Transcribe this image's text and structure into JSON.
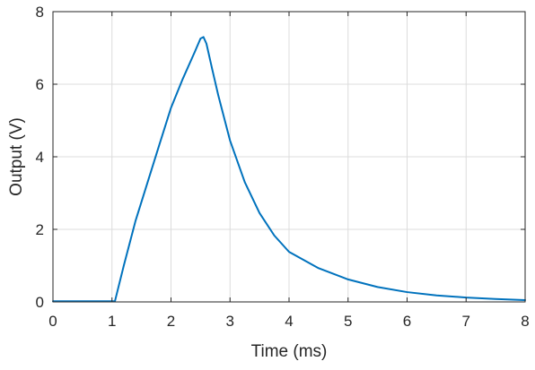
{
  "chart_data": {
    "type": "line",
    "title": "",
    "xlabel": "Time (ms)",
    "ylabel": "Output (V)",
    "xlim": [
      0,
      8
    ],
    "ylim": [
      0,
      8
    ],
    "xticks": [
      0,
      1,
      2,
      3,
      4,
      5,
      6,
      7,
      8
    ],
    "yticks": [
      0,
      2,
      4,
      6,
      8
    ],
    "xtick_labels": [
      "0",
      "1",
      "2",
      "3",
      "4",
      "5",
      "6",
      "7",
      "8"
    ],
    "ytick_labels": [
      "0",
      "2",
      "4",
      "6",
      "8"
    ],
    "grid": true,
    "colors": {
      "series": "#0072bd",
      "grid": "#dcdcdc",
      "axes": "#262626"
    },
    "series": [
      {
        "x": [
          0,
          0.5,
          1.0,
          1.05,
          1.2,
          1.4,
          1.6,
          1.8,
          2.0,
          2.2,
          2.4,
          2.5,
          2.55,
          2.6,
          2.7,
          2.8,
          3.0,
          3.25,
          3.5,
          3.75,
          4.0,
          4.5,
          5.0,
          5.5,
          6.0,
          6.5,
          7.0,
          7.5,
          8.0
        ],
        "values": [
          0.02,
          0.02,
          0.02,
          0.02,
          1.0,
          2.24,
          3.28,
          4.32,
          5.35,
          6.15,
          6.88,
          7.26,
          7.3,
          7.12,
          6.4,
          5.7,
          4.45,
          3.3,
          2.45,
          1.83,
          1.38,
          0.93,
          0.62,
          0.41,
          0.27,
          0.18,
          0.12,
          0.08,
          0.05
        ]
      }
    ]
  }
}
